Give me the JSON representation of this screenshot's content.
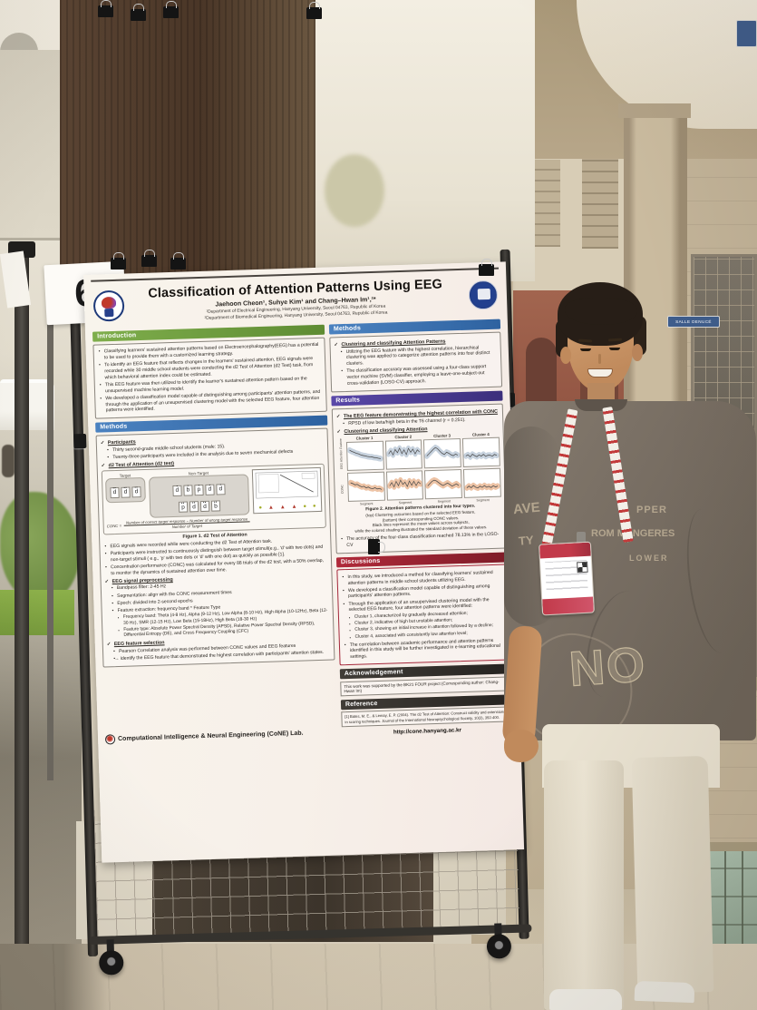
{
  "scene": {
    "poster_number": "6",
    "room_plaque": "SALLE DENUCÉ",
    "shirt": {
      "l1": "PPER",
      "l2": "ROM MANGERES",
      "l3": "LOWER",
      "l4": "NO",
      "side1": "AVE",
      "side2": "TY"
    }
  },
  "poster": {
    "title": "Classification of Attention Patterns Using EEG",
    "authors": "Jaehoon Cheon¹, Suhye Kim¹ and Chang–Hwan Im¹,²*",
    "aff1": "¹Department of Electrical Engineering, Hanyang University, Seoul 04763, Republic of Korea",
    "aff2": "²Department of Biomedical Engineering, Hanyang University, Seoul 04763, Republic of Korea",
    "colors": {
      "intro": "#6f9c3e",
      "methods": "#3a72b0",
      "results": "#4b3b92",
      "discussions": "#9c2433",
      "ack": "#33302c",
      "ref": "#33302c"
    },
    "intro": {
      "heading": "Introduction",
      "bullets": [
        "Classifying learners' sustained attention patterns based on Electroencephalography(EEG) has a potential to be used to provide them with a customized learning strategy.",
        "To identify an EEG feature that reflects changes in the learners' sustained attention, EEG signals were recorded while 30 middle school students were conducting the d2 Test of Attention (d2 Test) task, from which behavioral attention index could be estimated.",
        "This EEG feature was then utilized to identify the learner's sustained attention pattern based on the unsupervised machine learning model.",
        "We developed a classification model capable of distinguishing among participants' attention patterns, and through the application of an unsupervised clustering model with the selected EEG feature, four attention patterns were identified."
      ]
    },
    "methods_left": {
      "heading": "Methods",
      "participants_h": "Participants",
      "participants": [
        "Thirty second-grade middle school students (male: 15).",
        "Twenty-three participants were included in the analysis due to seven mechanical defects"
      ],
      "d2_h": "d2 Test of Attention (d2 test)",
      "figure1": {
        "target_label": "Target",
        "nontarget_label": "Non-Target",
        "target_letters": [
          "d",
          "d",
          "d"
        ],
        "nt_row1": [
          "d",
          "b",
          "p",
          "d",
          "d"
        ],
        "nt_row2": [
          "p",
          "d",
          "d",
          "b"
        ],
        "formula_lhs": "CONC =",
        "formula_num": "Number of correct target response − Number of wrong target response",
        "formula_den": "Number of Target",
        "markers": [
          {
            "s": "●",
            "c": "#a3ad2a"
          },
          {
            "s": "▲",
            "c": "#b03a2e"
          },
          {
            "s": "▲",
            "c": "#b03a2e"
          },
          {
            "s": "▲",
            "c": "#b03a2e"
          },
          {
            "s": "●",
            "c": "#a3ad2a"
          },
          {
            "s": "●",
            "c": "#a3ad2a"
          }
        ],
        "caption": "Figure 1. d2 Test of Attention"
      },
      "d2_bullets": [
        "EEG signals were recorded while were conducting the d2 Test of Attention task.",
        "Participants were instructed to continuously distinguish between target stimuli(e.g., 'd' with two dots) and non-target stimuli ( e.g., 'p' with two dots or 'd' with one dot) as quickly as possible [1].",
        "Concentration performance (CONC) was calculated for every 88 trials of the d2 test, with a 50% overlap, to monitor the dynamics of sustained attention over time."
      ],
      "prep_h": "EEG signal preprocessing",
      "prep_bullets": [
        "Bandpass filter: 2-45 Hz",
        "Segmentation: align with the CONC measurement times",
        "Epoch: divided into 2-second epochs",
        "Feature extraction: frequency band * Feature Type"
      ],
      "prep_sub": [
        "Frequency band: Theta (4-8 Hz), Alpha (9-12 Hz), Low Alpha (8-10 Hz), High Alpha (10-12Hz), Beta (12-30 Hz), SMR (12-15 Hz), Low Beta (15-18Hz), High Beta (18-30 Hz)",
        "Feature type: Absolute Power Spectral Density (APSD), Relative Power Spectral Density (RPSD), Differential Entropy (DE), and Cross Frequency Coupling (CFC)"
      ],
      "sel_h": "EEG feature selection",
      "sel_bullets": [
        "Pearson Correlation analysis was performed between CONC values and EEG features",
        "→ identify the EEG feature that demonstrated the highest correlation with participants' attention states."
      ]
    },
    "methods_right": {
      "heading": "Methods",
      "h": "Clustering and classifying Attention Patterns",
      "bullets": [
        "Utilizing the EEG feature with the highest correlation, hierarchical clustering was applied to categorize attention patterns into four distinct clusters.",
        "The classification accuracy was assessed using a four-class support vector machine (SVM) classifier, employing a leave-one-subject-out cross-validation (LOSO-CV) approach."
      ]
    },
    "results": {
      "heading": "Results",
      "h1": "The EEG feature demonstrating the highest correlation with CONC",
      "b1": "RPSD of low beta/high beta in the T6 channel (r = 0.251).",
      "h2": "Clustering and classifying Attention",
      "figure2": {
        "ylabel_top": "EEG Attention Feature",
        "ylabel_bottom": "CONC",
        "xlabel": "Segment",
        "cluster_titles": [
          "Cluster 1",
          "Cluster 2",
          "Cluster 3",
          "Cluster 4"
        ],
        "clusters": [
          {
            "eeg": [
              0.78,
              0.72,
              0.68,
              0.63,
              0.6,
              0.55,
              0.52,
              0.5,
              0.47,
              0.45,
              0.44,
              0.41,
              0.4,
              0.37,
              0.35
            ],
            "conc": [
              0.7,
              0.66,
              0.6,
              0.62,
              0.55,
              0.5,
              0.52,
              0.45,
              0.48,
              0.42,
              0.4,
              0.44,
              0.38,
              0.4,
              0.35
            ]
          },
          {
            "eeg": [
              0.55,
              0.7,
              0.5,
              0.75,
              0.6,
              0.8,
              0.55,
              0.72,
              0.5,
              0.78,
              0.6,
              0.74,
              0.52,
              0.7,
              0.6
            ],
            "conc": [
              0.5,
              0.65,
              0.45,
              0.7,
              0.5,
              0.75,
              0.55,
              0.65,
              0.45,
              0.7,
              0.5,
              0.68,
              0.48,
              0.65,
              0.55
            ]
          },
          {
            "eeg": [
              0.4,
              0.5,
              0.6,
              0.7,
              0.78,
              0.72,
              0.6,
              0.5,
              0.45,
              0.55,
              0.5,
              0.42,
              0.38,
              0.45,
              0.4
            ],
            "conc": [
              0.45,
              0.55,
              0.65,
              0.7,
              0.66,
              0.58,
              0.5,
              0.44,
              0.5,
              0.55,
              0.48,
              0.4,
              0.45,
              0.5,
              0.42
            ]
          },
          {
            "eeg": [
              0.35,
              0.4,
              0.3,
              0.42,
              0.35,
              0.3,
              0.38,
              0.32,
              0.4,
              0.3,
              0.35,
              0.35,
              0.3,
              0.38,
              0.33
            ],
            "conc": [
              0.3,
              0.38,
              0.3,
              0.4,
              0.32,
              0.28,
              0.36,
              0.3,
              0.38,
              0.3,
              0.34,
              0.28,
              0.36,
              0.3,
              0.34
            ]
          }
        ],
        "caption": [
          "Figure 2. Attention patterns clustered into four types.",
          "(top) Clustering outcomes based on the selected EEG feature,",
          "(bottom) their corresponding CONC values.",
          "Black lines represent the mean values across subjects,",
          "while the colored shading illustrated the standard deviation of these values."
        ]
      },
      "b2": "The accuracy of the four-class classification reached 78.13% in the LOSO-CV"
    },
    "discussions": {
      "heading": "Discussions",
      "bullets": [
        "In this study, we introduced a method for classifying learners' sustained attention patterns in middle school students utilizing EEG.",
        "We developed a classification model capable of distinguishing among participants' attention patterns.",
        "Through the application of an unsupervised clustering model with the selected EEG feature, four attention patterns were identified:"
      ],
      "clusters": [
        "Cluster 1, characterized by gradually decreased attention;",
        "Cluster 2, indicative of high but unstable attention;",
        "Cluster 3, showing an initial increase in attention followed by a decline;",
        "Cluster 4, associated with consistently low attention level;"
      ],
      "last": "The correlation between academic performance and attention patterns identified in this study will be further investigated in e-learning educational settings."
    },
    "ack": {
      "heading": "Acknowledgement",
      "text": "This work was supported by the BK21 FOUR project (Corresponding author: Chang-Hwan Im)"
    },
    "ref": {
      "heading": "Reference",
      "text": "[1] Bates, M. E., & Lemay, E. P. (2004). The d2 Test of Attention: Construct validity and extensions in scoring techniques. Journal of the International Neuropsychological Society, 10(3), 392-400.",
      "url": "http://cone.hanyang.ac.kr"
    },
    "footer_lab": "Computational Intelligence & Neural Engineering (CoNE) Lab."
  }
}
